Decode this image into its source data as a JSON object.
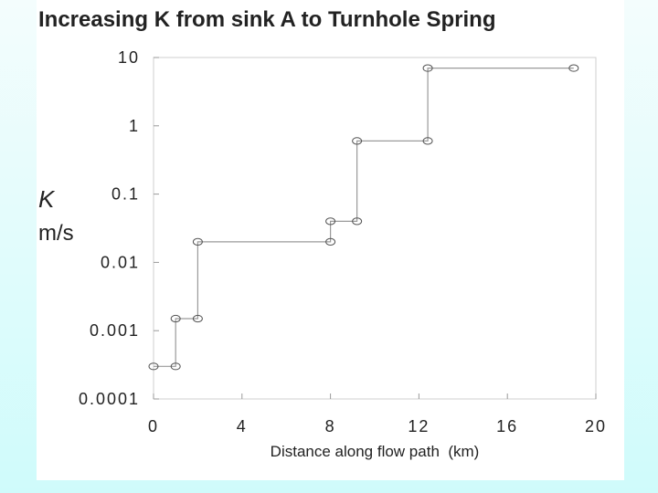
{
  "chart_data": {
    "type": "line",
    "title": "Increasing K from sink A to Turnhole Spring",
    "ylabel": "K",
    "yunit": "m/s",
    "xlabel": "Distance along flow path  (km)",
    "xlim": [
      0,
      20
    ],
    "ylim": [
      0.0001,
      10
    ],
    "yscale": "log",
    "grid": false,
    "xticks": [
      0,
      4,
      8,
      12,
      16,
      20
    ],
    "xtick_labels": [
      "0",
      "4",
      "8",
      "12",
      "16",
      "20"
    ],
    "yticks": [
      0.0001,
      0.001,
      0.01,
      0.1,
      1,
      10
    ],
    "ytick_labels": [
      "0.0001",
      "0.001",
      "0.01",
      "0.1",
      "1",
      "10"
    ],
    "series": [
      {
        "color": "#555555",
        "marker": "open-circle",
        "x": [
          0,
          1,
          1,
          2,
          2,
          8,
          8,
          9.2,
          9.2,
          12.4,
          12.4,
          19
        ],
        "y": [
          0.0003,
          0.0003,
          0.0015,
          0.0015,
          0.02,
          0.02,
          0.04,
          0.04,
          0.6,
          0.6,
          7,
          7
        ]
      }
    ]
  }
}
